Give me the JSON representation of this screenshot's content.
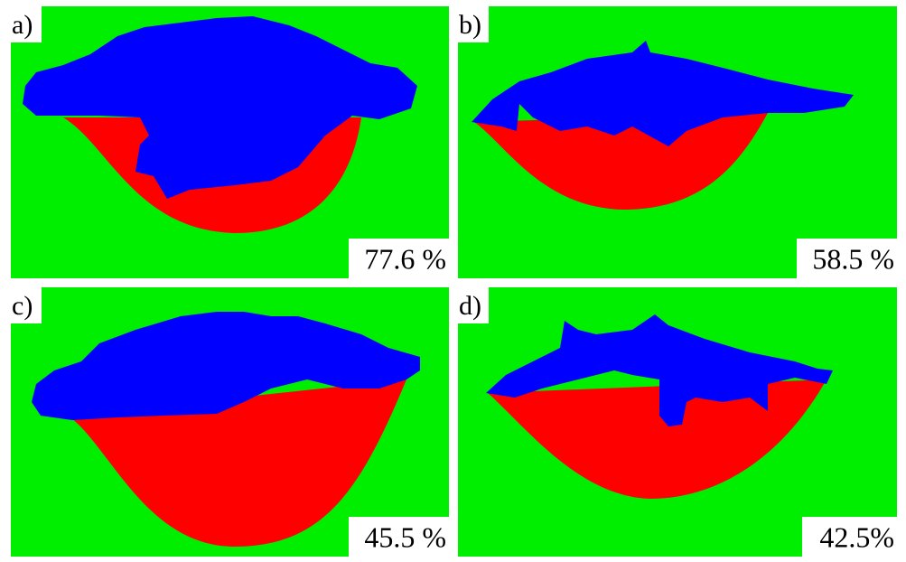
{
  "panels": [
    {
      "label": "a)",
      "caption": "77.6 %"
    },
    {
      "label": "b)",
      "caption": "58.5 %"
    },
    {
      "label": "c)",
      "caption": "45.5 %"
    },
    {
      "label": "d)",
      "caption": "42.5%"
    }
  ]
}
